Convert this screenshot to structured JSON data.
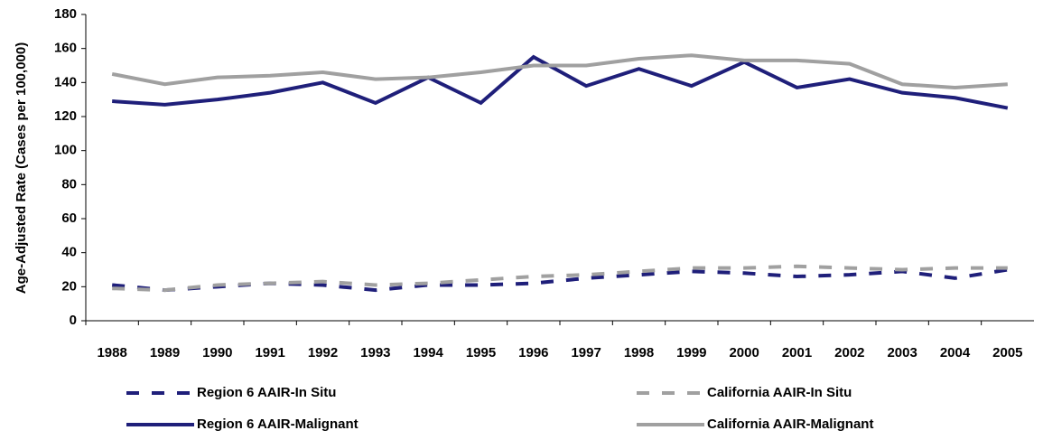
{
  "chart_data": {
    "type": "line",
    "ylabel": "Age-Adjusted Rate (Cases per 100,000)",
    "categories": [
      "1988",
      "1989",
      "1990",
      "1991",
      "1992",
      "1993",
      "1994",
      "1995",
      "1996",
      "1997",
      "1998",
      "1999",
      "2000",
      "2001",
      "2002",
      "2003",
      "2004",
      "2005"
    ],
    "series": [
      {
        "name": "Region 6 AAIR-In Situ",
        "color": "#1f1f7a",
        "dashed": true,
        "values": [
          21,
          18,
          20,
          22,
          21,
          18,
          21,
          21,
          22,
          25,
          27,
          29,
          28,
          26,
          27,
          29,
          25,
          30
        ]
      },
      {
        "name": "California AAIR-In Situ",
        "color": "#a0a0a0",
        "dashed": true,
        "values": [
          19,
          18,
          21,
          22,
          23,
          21,
          22,
          24,
          26,
          27,
          29,
          31,
          31,
          32,
          31,
          30,
          31,
          31
        ]
      },
      {
        "name": "Region 6 AAIR-Malignant",
        "color": "#1f1f7a",
        "dashed": false,
        "values": [
          129,
          127,
          130,
          134,
          140,
          128,
          143,
          128,
          155,
          138,
          148,
          138,
          152,
          137,
          142,
          134,
          131,
          125
        ]
      },
      {
        "name": "California AAIR-Malignant",
        "color": "#a0a0a0",
        "dashed": false,
        "values": [
          145,
          139,
          143,
          144,
          146,
          142,
          143,
          146,
          150,
          150,
          154,
          156,
          153,
          153,
          151,
          139,
          137,
          139
        ]
      }
    ],
    "ylim": [
      0,
      180
    ],
    "yticks": [
      0,
      20,
      40,
      60,
      80,
      100,
      120,
      140,
      160,
      180
    ],
    "grid": false
  }
}
